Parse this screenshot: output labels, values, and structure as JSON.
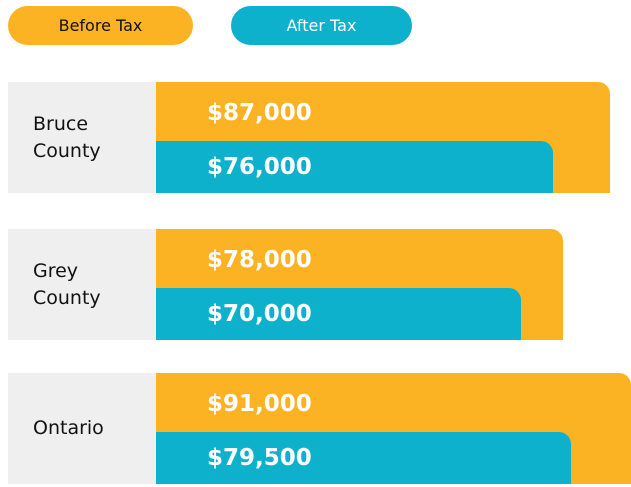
{
  "chart_data": {
    "type": "bar",
    "orientation": "horizontal",
    "categories": [
      "Bruce County",
      "Grey County",
      "Ontario"
    ],
    "series": [
      {
        "name": "Before Tax",
        "color": "#fbb324",
        "values": [
          87000,
          78000,
          91000
        ],
        "value_labels": [
          "$87,000",
          "$78,000",
          "$91,000"
        ]
      },
      {
        "name": "After Tax",
        "color": "#0eb1cc",
        "values": [
          76000,
          70000,
          79500
        ],
        "value_labels": [
          "$76,000",
          "$70,000",
          "$79,500"
        ]
      }
    ],
    "xlim": [
      0,
      91000
    ],
    "legend": "top-left"
  }
}
